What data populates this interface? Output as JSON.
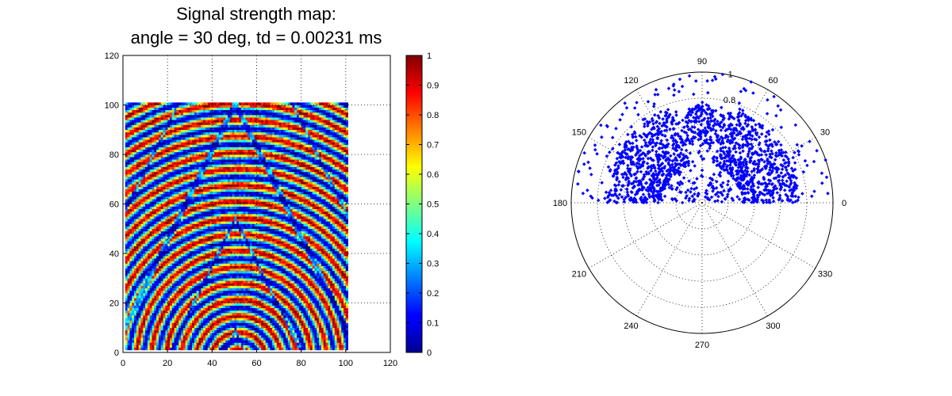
{
  "chart_data": [
    {
      "type": "heatmap",
      "title_lines": [
        "Signal strength map:",
        "angle = 30 deg, td = 0.00231 ms"
      ],
      "xlabel": "",
      "ylabel": "",
      "xlim": [
        0,
        120
      ],
      "ylim": [
        0,
        120
      ],
      "x_ticks": [
        0,
        20,
        40,
        60,
        80,
        100,
        120
      ],
      "y_ticks": [
        0,
        20,
        40,
        60,
        80,
        100,
        120
      ],
      "grid": true,
      "data_extent": {
        "x": [
          1,
          101
        ],
        "y": [
          1,
          101
        ]
      },
      "pattern": {
        "description_source": "concentric interference rings",
        "ring_center": [
          52,
          -5
        ],
        "ring_spacing": 6.6,
        "value_range": [
          0,
          1
        ]
      },
      "colorbar": {
        "colormap": "jet",
        "range": [
          0,
          1
        ],
        "ticks": [
          0,
          0.1,
          0.2,
          0.3,
          0.4,
          0.5,
          0.6,
          0.7,
          0.8,
          0.9,
          1
        ]
      }
    },
    {
      "type": "scatter",
      "coordinate_system": "polar",
      "marker_color": "#0000ff",
      "r_max": 1,
      "r_ticks": [
        0.2,
        0.4,
        0.6,
        0.8,
        1
      ],
      "r_tick_labels_shown": [
        "0.8",
        "1"
      ],
      "angle_ticks_deg": [
        0,
        30,
        60,
        90,
        120,
        150,
        180,
        210,
        240,
        270,
        300,
        330
      ],
      "point_count": 1800,
      "distribution": {
        "angle_range_deg": [
          0,
          180
        ],
        "r_range": [
          0.05,
          1.0
        ],
        "dense_region_r": [
          0.3,
          0.75
        ],
        "sparse_lobe_angle_deg": 90
      }
    }
  ],
  "colors": {
    "polar_marker": "#0000ff",
    "grid": "#000000",
    "axes": "#000000"
  }
}
